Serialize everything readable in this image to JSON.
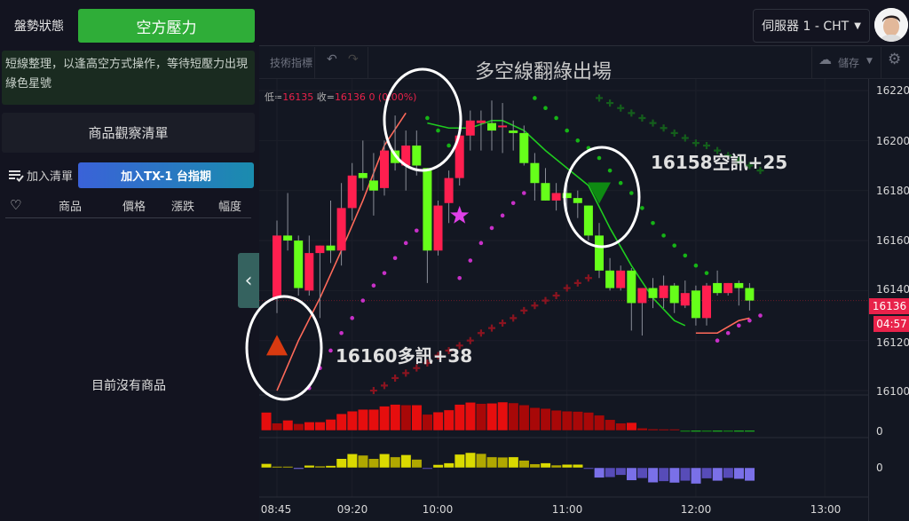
{
  "sidebar": {
    "status_label": "盤勢狀態",
    "status_value": "空方壓力",
    "message": "短線整理，以逢高空方式操作，等待短壓力出現綠色星號",
    "watchlist_title": "商品觀察清單",
    "add_list_label": "加入清單",
    "add_product_button": "加入TX-1 台指期",
    "columns": [
      "商品",
      "價格",
      "漲跌",
      "幅度"
    ],
    "empty_text": "目前沒有商品"
  },
  "header": {
    "server_label": "伺服器 1 - CHT"
  },
  "toolbar": {
    "indicators_label": "技術指標",
    "save_label": "儲存"
  },
  "legend": {
    "low_label": "低=",
    "low_value": "16135",
    "close_label": "收=",
    "close_value": "16136",
    "change": "0 (0.00%)"
  },
  "annotations": {
    "title": "多空線翻綠出場",
    "long_signal": "16160多訊+38",
    "short_signal": "16158空訊+25"
  },
  "price_axis": {
    "labels": [
      "16220",
      "16200",
      "16180",
      "16160",
      "16140",
      "16120",
      "16100"
    ],
    "current_price": "16136",
    "countdown": "04:57",
    "pane_zero_1": "0",
    "pane_zero_2": "0"
  },
  "time_axis": [
    "08:45",
    "09:20",
    "10:00",
    "11:00",
    "12:00",
    "13:00"
  ],
  "colors": {
    "up": "#ff1f4f",
    "down": "#66ff1a",
    "accent_green": "#2fad38",
    "current_price_tag": "#e8224a"
  },
  "chart_data": {
    "type": "candlestick",
    "ylim": [
      16100,
      16220
    ],
    "candles": [
      [
        "08:45",
        16137,
        16168,
        16131,
        16162
      ],
      [
        "08:50",
        16162,
        16179,
        16156,
        16160
      ],
      [
        "08:55",
        16160,
        16162,
        16138,
        16141
      ],
      [
        "09:00",
        16140,
        16162,
        16138,
        16155
      ],
      [
        "09:05",
        16155,
        16158,
        16129,
        16158
      ],
      [
        "09:10",
        16158,
        16176,
        16151,
        16156
      ],
      [
        "09:15",
        16156,
        16183,
        16150,
        16173
      ],
      [
        "09:20",
        16173,
        16191,
        16168,
        16186
      ],
      [
        "09:25",
        16187,
        16200,
        16180,
        16185
      ],
      [
        "09:30",
        16184,
        16195,
        16170,
        16180
      ],
      [
        "09:35",
        16181,
        16200,
        16178,
        16196
      ],
      [
        "09:40",
        16196,
        16210,
        16188,
        16191
      ],
      [
        "09:45",
        16190,
        16204,
        16180,
        16198
      ],
      [
        "09:50",
        16198,
        16204,
        16186,
        16190
      ],
      [
        "09:55",
        16189,
        16189,
        16143,
        16156
      ],
      [
        "10:00",
        16156,
        16176,
        16154,
        16174
      ],
      [
        "10:05",
        16175,
        16188,
        16167,
        16185
      ],
      [
        "10:10",
        16185,
        16204,
        16182,
        16202
      ],
      [
        "10:15",
        16202,
        16212,
        16196,
        16208
      ],
      [
        "10:20",
        16207,
        16212,
        16196,
        16208
      ],
      [
        "10:25",
        16207,
        16216,
        16196,
        16204
      ],
      [
        "10:30",
        16206,
        16215,
        16195,
        16206
      ],
      [
        "10:35",
        16204,
        16208,
        16196,
        16203
      ],
      [
        "10:40",
        16203,
        16206,
        16190,
        16191
      ],
      [
        "10:45",
        16191,
        16195,
        16176,
        16183
      ],
      [
        "10:50",
        16183,
        16189,
        16176,
        16176
      ],
      [
        "10:55",
        16176,
        16183,
        16172,
        16179
      ],
      [
        "11:00",
        16179,
        16184,
        16172,
        16177
      ],
      [
        "11:05",
        16177,
        16180,
        16169,
        16175
      ],
      [
        "11:10",
        16174,
        16174,
        16160,
        16162
      ],
      [
        "11:15",
        16162,
        16167,
        16145,
        16148
      ],
      [
        "11:20",
        16148,
        16153,
        16140,
        16141
      ],
      [
        "11:25",
        16141,
        16150,
        16140,
        16148
      ],
      [
        "11:30",
        16148,
        16149,
        16124,
        16135
      ],
      [
        "11:35",
        16135,
        16141,
        16122,
        16141
      ],
      [
        "11:40",
        16141,
        16145,
        16133,
        16137
      ],
      [
        "11:45",
        16137,
        16146,
        16133,
        16142
      ],
      [
        "11:50",
        16142,
        16143,
        16131,
        16135
      ],
      [
        "11:55",
        16134,
        16144,
        16133,
        16139
      ],
      [
        "12:00",
        16140,
        16142,
        16126,
        16129
      ],
      [
        "12:05",
        16129,
        16143,
        16126,
        16142
      ],
      [
        "12:10",
        16143,
        16148,
        16138,
        16139
      ],
      [
        "12:15",
        16139,
        16143,
        16138,
        16143
      ],
      [
        "12:20",
        16143,
        16144,
        16134,
        16141
      ],
      [
        "12:25",
        16141,
        16143,
        16132,
        16136
      ]
    ],
    "lines": [
      {
        "color": "#ff6a5a",
        "points": [
          [
            "08:45",
            16100
          ],
          [
            "08:55",
            16120
          ],
          [
            "09:05",
            16137
          ],
          [
            "09:15",
            16156
          ],
          [
            "09:25",
            16176
          ],
          [
            "09:35",
            16198
          ],
          [
            "09:45",
            16211
          ]
        ]
      },
      {
        "color": "#1fcc1f",
        "points": [
          [
            "09:55",
            16207
          ],
          [
            "10:05",
            16205
          ],
          [
            "10:15",
            16205
          ],
          [
            "10:25",
            16208
          ],
          [
            "10:30",
            16208
          ],
          [
            "10:40",
            16204
          ],
          [
            "10:50",
            16196
          ],
          [
            "11:00",
            16189
          ],
          [
            "11:10",
            16182
          ],
          [
            "11:20",
            16165
          ],
          [
            "11:30",
            16150
          ],
          [
            "11:40",
            16137
          ],
          [
            "11:50",
            16128
          ],
          [
            "11:55",
            16126
          ]
        ]
      },
      {
        "color": "#ff6a5a",
        "points": [
          [
            "12:00",
            16123
          ],
          [
            "12:10",
            16123
          ],
          [
            "12:20",
            16128
          ],
          [
            "12:25",
            16129
          ]
        ]
      }
    ],
    "purple_dots": [
      [
        "09:00",
        16101
      ],
      [
        "09:05",
        16109
      ],
      [
        "09:10",
        16116
      ],
      [
        "09:15",
        16123
      ],
      [
        "09:20",
        16129
      ],
      [
        "09:25",
        16136
      ],
      [
        "09:30",
        16142
      ],
      [
        "09:35",
        16147
      ],
      [
        "09:40",
        16153
      ],
      [
        "09:45",
        16159
      ],
      [
        "09:50",
        16164
      ],
      [
        "10:10",
        16145
      ],
      [
        "10:15",
        16152
      ],
      [
        "10:20",
        16159
      ],
      [
        "10:25",
        16165
      ],
      [
        "10:30",
        16170
      ],
      [
        "10:35",
        16175
      ],
      [
        "10:40",
        16179
      ],
      [
        "12:10",
        16120
      ],
      [
        "12:15",
        16123
      ],
      [
        "12:20",
        16126
      ],
      [
        "12:25",
        16128
      ],
      [
        "12:30",
        16130
      ]
    ],
    "green_dots": [
      [
        "09:55",
        16209
      ],
      [
        "10:00",
        16204
      ],
      [
        "10:05",
        16198
      ],
      [
        "10:45",
        16217
      ],
      [
        "10:50",
        16213
      ],
      [
        "10:55",
        16209
      ],
      [
        "11:00",
        16204
      ],
      [
        "11:05",
        16200
      ],
      [
        "11:10",
        16197
      ],
      [
        "11:15",
        16193
      ],
      [
        "11:20",
        16188
      ],
      [
        "11:25",
        16183
      ],
      [
        "11:30",
        16179
      ],
      [
        "11:35",
        16173
      ],
      [
        "11:40",
        16167
      ],
      [
        "11:45",
        16162
      ],
      [
        "11:50",
        16158
      ],
      [
        "11:55",
        16154
      ],
      [
        "12:00",
        16150
      ],
      [
        "12:05",
        16147
      ]
    ],
    "red_crosses": [
      [
        "09:30",
        16100
      ],
      [
        "09:35",
        16102
      ],
      [
        "09:40",
        16105
      ],
      [
        "09:45",
        16107
      ],
      [
        "09:50",
        16109
      ],
      [
        "09:55",
        16111
      ],
      [
        "10:00",
        16114
      ],
      [
        "10:05",
        16116
      ],
      [
        "10:10",
        16118
      ],
      [
        "10:15",
        16120
      ],
      [
        "10:20",
        16123
      ],
      [
        "10:25",
        16125
      ],
      [
        "10:30",
        16127
      ],
      [
        "10:35",
        16129
      ],
      [
        "10:40",
        16132
      ],
      [
        "10:45",
        16134
      ],
      [
        "10:50",
        16136
      ],
      [
        "10:55",
        16138
      ],
      [
        "11:00",
        16141
      ],
      [
        "11:05",
        16143
      ],
      [
        "11:10",
        16145
      ]
    ],
    "green_crosses": [
      [
        "11:15",
        16217
      ],
      [
        "11:20",
        16215
      ],
      [
        "11:25",
        16213
      ],
      [
        "11:30",
        16211
      ],
      [
        "11:35",
        16209
      ],
      [
        "11:40",
        16207
      ],
      [
        "11:45",
        16205
      ],
      [
        "11:50",
        16203
      ],
      [
        "11:55",
        16201
      ],
      [
        "12:00",
        16199
      ],
      [
        "12:05",
        16198
      ],
      [
        "12:10",
        16196
      ],
      [
        "12:15",
        16194
      ],
      [
        "12:20",
        16192
      ],
      [
        "12:25",
        16190
      ],
      [
        "12:30",
        16188
      ]
    ],
    "markers": [
      {
        "type": "triangle-up",
        "time": "08:45",
        "price": 16118,
        "color": "#d93a10"
      },
      {
        "type": "triangle-down",
        "time": "11:15",
        "price": 16179,
        "color": "#0e8a12"
      },
      {
        "type": "star",
        "time": "10:10",
        "price": 16170,
        "color": "#e040e8"
      }
    ],
    "histogram_1": {
      "start": "08:40",
      "values": [
        62,
        25,
        35,
        23,
        29,
        29,
        38,
        57,
        66,
        72,
        72,
        83,
        89,
        87,
        87,
        55,
        63,
        70,
        89,
        96,
        92,
        93,
        97,
        94,
        87,
        78,
        75,
        69,
        66,
        65,
        62,
        52,
        37,
        25,
        27,
        8,
        5,
        3,
        2,
        -1,
        -3,
        -2,
        -3,
        -2,
        -3,
        -4
      ]
    },
    "histogram_2": {
      "start": "08:40",
      "values": [
        17,
        4,
        2,
        -3,
        10,
        7,
        9,
        38,
        58,
        52,
        38,
        58,
        45,
        54,
        35,
        -3,
        13,
        20,
        56,
        63,
        59,
        45,
        44,
        45,
        31,
        16,
        20,
        11,
        14,
        14,
        -3,
        -42,
        -40,
        -31,
        -53,
        -44,
        -62,
        -57,
        -63,
        -55,
        -67,
        -45,
        -55,
        -43,
        -47,
        -55
      ]
    }
  }
}
